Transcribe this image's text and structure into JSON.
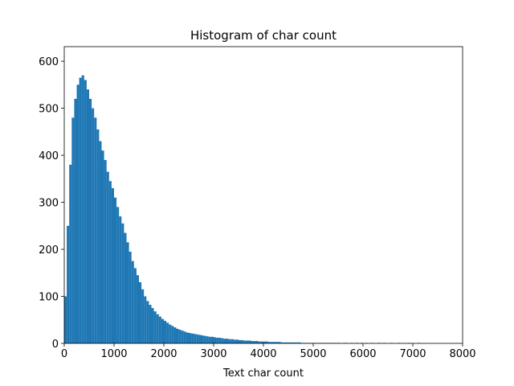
{
  "chart_data": {
    "type": "histogram",
    "title": "Histogram of char count",
    "xlabel": "Text char count",
    "color": "#1f77b4",
    "bins": [
      0,
      50,
      100,
      150,
      200,
      250,
      300,
      350,
      400,
      450,
      500,
      550,
      600,
      650,
      700,
      750,
      800,
      850,
      900,
      950,
      1000,
      1050,
      1100,
      1150,
      1200,
      1250,
      1300,
      1350,
      1400,
      1450,
      1500,
      1550,
      1600,
      1650,
      1700,
      1750,
      1800,
      1850,
      1900,
      1950,
      2000,
      2050,
      2100,
      2150,
      2200,
      2250,
      2300,
      2350,
      2400,
      2450,
      2500,
      2550,
      2600,
      2650,
      2700,
      2750,
      2800,
      2850,
      2900,
      2950,
      3000,
      3050,
      3100,
      3150,
      3200,
      3250,
      3300,
      3350,
      3400,
      3450,
      3500,
      3550,
      3600,
      3650,
      3700,
      3750,
      3800,
      3850,
      3900,
      3950,
      4000,
      4050,
      4100,
      4150,
      4200,
      4250,
      4300,
      4350,
      4400,
      4450,
      4500,
      4550,
      4600,
      4650,
      4700,
      4750,
      4800,
      4850,
      4900,
      4950,
      5000,
      5050,
      5100,
      5150,
      5200,
      5250,
      5300,
      5350,
      5400,
      5450,
      5500,
      5550,
      5600,
      5650,
      5700,
      5750,
      5800,
      5850,
      5900,
      5950,
      6000,
      6050,
      6100,
      6150,
      6200,
      6250,
      6300,
      6350,
      6400,
      6450,
      6500,
      6550,
      6600,
      6650,
      6700,
      6750,
      6800,
      6850,
      6900,
      6950,
      7000,
      7050,
      7100,
      7150,
      7200
    ],
    "values": [
      100,
      250,
      380,
      480,
      520,
      550,
      565,
      570,
      560,
      540,
      520,
      500,
      480,
      455,
      430,
      410,
      390,
      365,
      345,
      330,
      310,
      290,
      270,
      255,
      235,
      215,
      195,
      175,
      160,
      145,
      130,
      115,
      100,
      90,
      82,
      75,
      68,
      62,
      57,
      52,
      48,
      44,
      40,
      37,
      34,
      31,
      29,
      27,
      25,
      23,
      22,
      21,
      20,
      19,
      18,
      17,
      16,
      15,
      14,
      14,
      13,
      12,
      12,
      11,
      10,
      10,
      9,
      9,
      8,
      8,
      7,
      7,
      6,
      6,
      6,
      5,
      5,
      5,
      4,
      4,
      4,
      4,
      3,
      3,
      3,
      3,
      3,
      2,
      2,
      2,
      2,
      2,
      2,
      2,
      2,
      1,
      1,
      1,
      1,
      1,
      1,
      1,
      1,
      1,
      1,
      1,
      1,
      1,
      1,
      1,
      1,
      0,
      1,
      1,
      0,
      1,
      0,
      1,
      0,
      1,
      0,
      1,
      0,
      1,
      0,
      0,
      1,
      0,
      1,
      0,
      0,
      1,
      0,
      0,
      1,
      0,
      0,
      0,
      1,
      0,
      0,
      0,
      1,
      0
    ],
    "xlim": [
      0,
      8000
    ],
    "xticks": [
      0,
      1000,
      2000,
      3000,
      4000,
      5000,
      6000,
      7000,
      8000
    ],
    "ylim": [
      0,
      631
    ],
    "yticks": [
      0,
      100,
      200,
      300,
      400,
      500,
      600
    ]
  }
}
